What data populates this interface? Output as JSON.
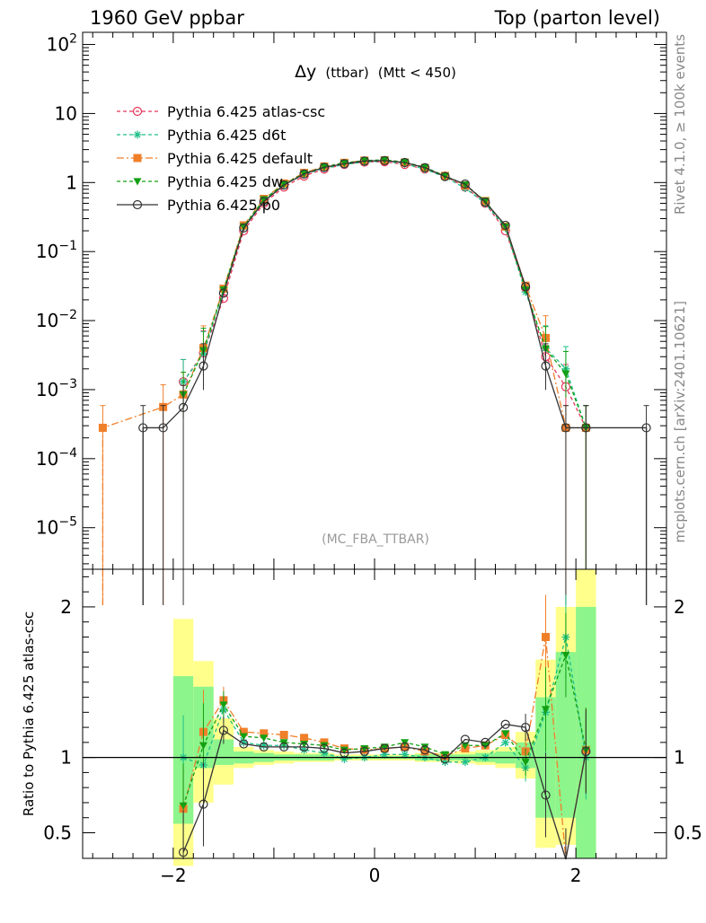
{
  "header": {
    "left": "1960 GeV ppbar",
    "right": "Top (parton level)"
  },
  "side_labels": {
    "rivet": "Rivet 4.1.0, ≥ 100k events",
    "mcplots": "mcplots.cern.ch [arXiv:2401.10621]"
  },
  "plot_title": {
    "symbol": "Δy",
    "detail": "(ttbar)",
    "cut": "(Mtt < 450)"
  },
  "watermark": "(MC_FBA_TTBAR)",
  "ratio_ylabel": "Ratio to Pythia 6.425 atlas-csc",
  "colors": {
    "atlas-csc": "#e8365a",
    "d6t": "#20c08a",
    "default": "#f07f2a",
    "dw": "#13a013",
    "p0": "#333333",
    "band_inner": "#8cf58c",
    "band_outer": "#ffff8c"
  },
  "chart_data": [
    {
      "type": "line",
      "panel": "main",
      "yscale": "log",
      "xlim": [
        -2.9,
        2.9
      ],
      "ylim": [
        2.5e-06,
        150
      ],
      "x_ticks": [
        -2,
        0,
        2
      ],
      "y_tick_labels": [
        {
          "value": 100,
          "base": "10",
          "exp": "2"
        },
        {
          "value": 10,
          "base": "10",
          "exp": ""
        },
        {
          "value": 1,
          "base": "1",
          "exp": ""
        },
        {
          "value": 0.1,
          "base": "10",
          "exp": "−1"
        },
        {
          "value": 0.01,
          "base": "10",
          "exp": "−2"
        },
        {
          "value": 0.001,
          "base": "10",
          "exp": "−3"
        },
        {
          "value": 0.0001,
          "base": "10",
          "exp": "−4"
        },
        {
          "value": 1e-05,
          "base": "10",
          "exp": "−5"
        }
      ],
      "series": [
        {
          "name": "Pythia 6.425 atlas-csc",
          "key": "atlas-csc",
          "marker": "open-circle",
          "dash": "4,3",
          "x": [
            -1.9,
            -1.7,
            -1.5,
            -1.3,
            -1.1,
            -0.9,
            -0.7,
            -0.5,
            -0.3,
            -0.1,
            0.1,
            0.3,
            0.5,
            0.7,
            0.9,
            1.1,
            1.3,
            1.5,
            1.7,
            1.9,
            2.1
          ],
          "y": [
            0.0013,
            0.0034,
            0.021,
            0.2,
            0.5,
            0.86,
            1.24,
            1.57,
            1.83,
            1.98,
            2.0,
            1.83,
            1.57,
            1.24,
            0.86,
            0.5,
            0.2,
            0.03,
            0.003,
            0.0011,
            0.00028
          ]
        },
        {
          "name": "Pythia 6.425 d6t",
          "key": "d6t",
          "marker": "asterisk",
          "dash": "4,3",
          "x": [
            -1.9,
            -1.7,
            -1.5,
            -1.3,
            -1.1,
            -0.9,
            -0.7,
            -0.5,
            -0.3,
            -0.1,
            0.1,
            0.3,
            0.5,
            0.7,
            0.9,
            1.1,
            1.3,
            1.5,
            1.7,
            1.9,
            2.1
          ],
          "y": [
            0.0013,
            0.0033,
            0.028,
            0.23,
            0.55,
            0.93,
            1.31,
            1.61,
            1.82,
            1.98,
            2.04,
            1.87,
            1.56,
            1.2,
            0.83,
            0.5,
            0.22,
            0.026,
            0.004,
            0.002,
            0.00028
          ]
        },
        {
          "name": "Pythia 6.425 default",
          "key": "default",
          "marker": "filled-square",
          "dash": "8,3,2,3",
          "x": [
            -2.7,
            -2.1,
            -1.9,
            -1.7,
            -1.5,
            -1.3,
            -1.1,
            -0.9,
            -0.7,
            -0.5,
            -0.3,
            -0.1,
            0.1,
            0.3,
            0.5,
            0.7,
            0.9,
            1.1,
            1.3,
            1.5,
            1.7,
            1.9,
            2.1
          ],
          "y": [
            0.00028,
            0.00056,
            0.00085,
            0.004,
            0.029,
            0.24,
            0.58,
            0.97,
            1.38,
            1.71,
            1.93,
            2.08,
            2.1,
            1.95,
            1.63,
            1.25,
            0.91,
            0.54,
            0.23,
            0.032,
            0.0056,
            0.00028,
            0.00028
          ]
        },
        {
          "name": "Pythia 6.425 dw",
          "key": "dw",
          "marker": "filled-down-triangle",
          "dash": "4,3",
          "x": [
            -1.9,
            -1.7,
            -1.5,
            -1.3,
            -1.1,
            -0.9,
            -0.7,
            -0.5,
            -0.3,
            -0.1,
            0.1,
            0.3,
            0.5,
            0.7,
            0.9,
            1.1,
            1.3,
            1.5,
            1.7,
            1.9,
            2.1
          ],
          "y": [
            0.00085,
            0.0037,
            0.028,
            0.23,
            0.57,
            0.95,
            1.35,
            1.69,
            1.92,
            2.08,
            2.13,
            1.98,
            1.66,
            1.25,
            0.93,
            0.54,
            0.23,
            0.028,
            0.0039,
            0.0017,
            0.00028
          ]
        },
        {
          "name": "Pythia 6.425 p0",
          "key": "p0",
          "marker": "open-circle",
          "dash": "",
          "x": [
            -2.3,
            -2.1,
            -1.9,
            -1.7,
            -1.5,
            -1.3,
            -1.1,
            -0.9,
            -0.7,
            -0.5,
            -0.3,
            -0.1,
            0.1,
            0.3,
            0.5,
            0.7,
            0.9,
            1.1,
            1.3,
            1.5,
            1.7,
            1.9,
            2.1,
            2.7
          ],
          "y": [
            0.00028,
            0.00028,
            0.00055,
            0.0022,
            0.025,
            0.22,
            0.53,
            0.92,
            1.33,
            1.66,
            1.87,
            2.05,
            2.08,
            1.95,
            1.64,
            1.22,
            0.95,
            0.52,
            0.24,
            0.031,
            0.0022,
            0.00028,
            0.00028,
            0.00028
          ]
        }
      ]
    },
    {
      "type": "line",
      "panel": "ratio",
      "xlim": [
        -2.9,
        2.9
      ],
      "ylim": [
        0.33,
        2.25
      ],
      "y_ticks": [
        0.5,
        1,
        2
      ],
      "x_ticks": [
        -2,
        0,
        2
      ],
      "x_tick_labels": [
        "−2",
        "0",
        "2"
      ],
      "y_tick_labels": [
        "0.5",
        "1",
        "2"
      ],
      "reference_line": 1,
      "bands": [
        {
          "x0": -2.0,
          "x1": -1.8,
          "inner": [
            0.56,
            1.54
          ],
          "outer": [
            0.28,
            1.92
          ]
        },
        {
          "x0": -1.8,
          "x1": -1.6,
          "inner": [
            0.93,
            1.47
          ],
          "outer": [
            0.7,
            1.64
          ]
        },
        {
          "x0": -1.6,
          "x1": -1.4,
          "inner": [
            0.95,
            1.12
          ],
          "outer": [
            0.82,
            1.26
          ]
        },
        {
          "x0": -1.4,
          "x1": -1.2,
          "inner": [
            0.96,
            1.04
          ],
          "outer": [
            0.93,
            1.07
          ]
        },
        {
          "x0": -1.2,
          "x1": -1.0,
          "inner": [
            0.97,
            1.03
          ],
          "outer": [
            0.95,
            1.05
          ]
        },
        {
          "x0": -1.0,
          "x1": -0.8,
          "inner": [
            0.98,
            1.02
          ],
          "outer": [
            0.96,
            1.04
          ]
        },
        {
          "x0": -0.8,
          "x1": -0.6,
          "inner": [
            0.98,
            1.02
          ],
          "outer": [
            0.97,
            1.03
          ]
        },
        {
          "x0": -0.6,
          "x1": -0.4,
          "inner": [
            0.98,
            1.02
          ],
          "outer": [
            0.97,
            1.03
          ]
        },
        {
          "x0": -0.4,
          "x1": -0.2,
          "inner": [
            0.99,
            1.01
          ],
          "outer": [
            0.98,
            1.02
          ]
        },
        {
          "x0": -0.2,
          "x1": 0.0,
          "inner": [
            0.99,
            1.01
          ],
          "outer": [
            0.98,
            1.02
          ]
        },
        {
          "x0": 0.0,
          "x1": 0.2,
          "inner": [
            0.99,
            1.01
          ],
          "outer": [
            0.98,
            1.02
          ]
        },
        {
          "x0": 0.2,
          "x1": 0.4,
          "inner": [
            0.99,
            1.01
          ],
          "outer": [
            0.98,
            1.02
          ]
        },
        {
          "x0": 0.4,
          "x1": 0.6,
          "inner": [
            0.98,
            1.02
          ],
          "outer": [
            0.97,
            1.03
          ]
        },
        {
          "x0": 0.6,
          "x1": 0.8,
          "inner": [
            0.98,
            1.02
          ],
          "outer": [
            0.97,
            1.03
          ]
        },
        {
          "x0": 0.8,
          "x1": 1.0,
          "inner": [
            0.98,
            1.02
          ],
          "outer": [
            0.96,
            1.04
          ]
        },
        {
          "x0": 1.0,
          "x1": 1.2,
          "inner": [
            0.97,
            1.03
          ],
          "outer": [
            0.95,
            1.05
          ]
        },
        {
          "x0": 1.2,
          "x1": 1.4,
          "inner": [
            0.96,
            1.04
          ],
          "outer": [
            0.93,
            1.07
          ]
        },
        {
          "x0": 1.4,
          "x1": 1.6,
          "inner": [
            0.93,
            1.1
          ],
          "outer": [
            0.86,
            1.17
          ]
        },
        {
          "x0": 1.6,
          "x1": 1.8,
          "inner": [
            0.6,
            1.4
          ],
          "outer": [
            0.4,
            1.65
          ]
        },
        {
          "x0": 1.8,
          "x1": 2.0,
          "inner": [
            0.6,
            1.7
          ],
          "outer": [
            0.42,
            2.0
          ]
        },
        {
          "x0": 2.0,
          "x1": 2.2,
          "inner": [
            0.33,
            2.0
          ],
          "outer": [
            0.33,
            2.25
          ]
        }
      ],
      "series": [
        {
          "key": "d6t",
          "marker": "asterisk",
          "dash": "4,3",
          "x": [
            -1.9,
            -1.7,
            -1.5,
            -1.3,
            -1.1,
            -0.9,
            -0.7,
            -0.5,
            -0.3,
            -0.1,
            0.1,
            0.3,
            0.5,
            0.7,
            0.9,
            1.1,
            1.3,
            1.5,
            1.7,
            1.9,
            2.1
          ],
          "y": [
            1.0,
            0.95,
            1.32,
            1.1,
            1.08,
            1.08,
            1.05,
            1.03,
            0.99,
            1.0,
            1.02,
            1.02,
            1.0,
            0.97,
            0.97,
            1.0,
            1.1,
            0.93,
            1.3,
            1.8,
            1.0
          ]
        },
        {
          "key": "default",
          "marker": "filled-square",
          "dash": "8,3,2,3",
          "x": [
            -1.9,
            -1.7,
            -1.5,
            -1.3,
            -1.1,
            -0.9,
            -0.7,
            -0.5,
            -0.3,
            -0.1,
            0.1,
            0.3,
            0.5,
            0.7,
            0.9,
            1.1,
            1.3,
            1.5,
            1.7,
            1.9,
            2.1
          ],
          "y": [
            0.66,
            1.17,
            1.38,
            1.17,
            1.16,
            1.15,
            1.13,
            1.1,
            1.06,
            1.05,
            1.06,
            1.07,
            1.04,
            1.01,
            1.06,
            1.08,
            1.15,
            1.04,
            1.8,
            0.25,
            1.05
          ]
        },
        {
          "key": "dw",
          "marker": "filled-down-triangle",
          "dash": "4,3",
          "x": [
            -1.9,
            -1.7,
            -1.5,
            -1.3,
            -1.1,
            -0.9,
            -0.7,
            -0.5,
            -0.3,
            -0.1,
            0.1,
            0.3,
            0.5,
            0.7,
            0.9,
            1.1,
            1.3,
            1.5,
            1.7,
            1.9,
            2.1
          ],
          "y": [
            0.68,
            1.08,
            1.35,
            1.14,
            1.13,
            1.1,
            1.09,
            1.08,
            1.05,
            1.06,
            1.07,
            1.1,
            1.07,
            1.02,
            1.08,
            1.08,
            1.16,
            0.97,
            1.32,
            1.68,
            1.05
          ]
        },
        {
          "key": "p0",
          "marker": "open-circle",
          "dash": "",
          "x": [
            -1.9,
            -1.7,
            -1.5,
            -1.3,
            -1.1,
            -0.9,
            -0.7,
            -0.5,
            -0.3,
            -0.1,
            0.1,
            0.3,
            0.5,
            0.7,
            0.9,
            1.1,
            1.3,
            1.5,
            1.7,
            1.9,
            2.1
          ],
          "y": [
            0.37,
            0.69,
            1.18,
            1.09,
            1.07,
            1.07,
            1.07,
            1.06,
            1.03,
            1.04,
            1.06,
            1.07,
            1.05,
            0.99,
            1.12,
            1.1,
            1.22,
            1.2,
            0.75,
            0.25,
            1.04
          ]
        }
      ]
    }
  ]
}
